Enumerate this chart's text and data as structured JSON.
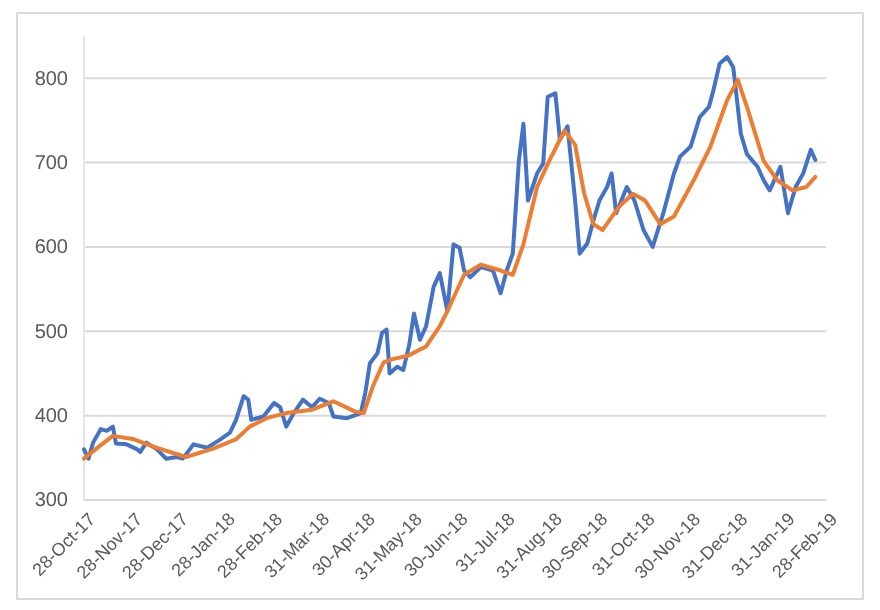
{
  "chart_data": {
    "type": "line",
    "xlim": [
      "2017-10-28",
      "2019-02-28"
    ],
    "xticks": [
      {
        "value": "2017-10-28",
        "label": "28-Oct-17"
      },
      {
        "value": "2017-11-28",
        "label": "28-Nov-17"
      },
      {
        "value": "2017-12-28",
        "label": "28-Dec-17"
      },
      {
        "value": "2018-01-28",
        "label": "28-Jan-18"
      },
      {
        "value": "2018-02-28",
        "label": "28-Feb-18"
      },
      {
        "value": "2018-03-31",
        "label": "31-Mar-18"
      },
      {
        "value": "2018-04-30",
        "label": "30-Apr-18"
      },
      {
        "value": "2018-05-31",
        "label": "31-May-18"
      },
      {
        "value": "2018-06-30",
        "label": "30-Jun-18"
      },
      {
        "value": "2018-07-31",
        "label": "31-Jul-18"
      },
      {
        "value": "2018-08-31",
        "label": "31-Aug-18"
      },
      {
        "value": "2018-09-30",
        "label": "30-Sep-18"
      },
      {
        "value": "2018-10-31",
        "label": "31-Oct-18"
      },
      {
        "value": "2018-11-30",
        "label": "30-Nov-18"
      },
      {
        "value": "2018-12-31",
        "label": "31-Dec-18"
      },
      {
        "value": "2019-01-31",
        "label": "31-Jan-19"
      },
      {
        "value": "2019-02-28",
        "label": "28-Feb-19"
      }
    ],
    "ylim": [
      300,
      850
    ],
    "yticks": [
      300,
      400,
      500,
      600,
      700,
      800
    ],
    "grid": "y",
    "series": [
      {
        "color": "#4472c4",
        "x": [
          "2017-10-28",
          "2017-10-31",
          "2017-11-03",
          "2017-11-08",
          "2017-11-12",
          "2017-11-16",
          "2017-11-18",
          "2017-11-25",
          "2017-12-02",
          "2017-12-04",
          "2017-12-08",
          "2017-12-15",
          "2017-12-21",
          "2017-12-28",
          "2018-01-01",
          "2018-01-08",
          "2018-01-17",
          "2018-01-25",
          "2018-02-01",
          "2018-02-05",
          "2018-02-10",
          "2018-02-13",
          "2018-02-15",
          "2018-02-23",
          "2018-03-02",
          "2018-03-06",
          "2018-03-10",
          "2018-03-15",
          "2018-03-21",
          "2018-03-27",
          "2018-04-01",
          "2018-04-07",
          "2018-04-10",
          "2018-04-19",
          "2018-04-28",
          "2018-05-01",
          "2018-05-04",
          "2018-05-09",
          "2018-05-12",
          "2018-05-15",
          "2018-05-17",
          "2018-05-22",
          "2018-05-26",
          "2018-05-30",
          "2018-06-02",
          "2018-06-06",
          "2018-06-10",
          "2018-06-15",
          "2018-06-19",
          "2018-06-24",
          "2018-06-28",
          "2018-07-02",
          "2018-07-05",
          "2018-07-09",
          "2018-07-16",
          "2018-07-24",
          "2018-07-29",
          "2018-08-02",
          "2018-08-06",
          "2018-08-10",
          "2018-08-13",
          "2018-08-16",
          "2018-08-22",
          "2018-08-26",
          "2018-08-29",
          "2018-09-03",
          "2018-09-06",
          "2018-09-11",
          "2018-09-16",
          "2018-09-19",
          "2018-09-24",
          "2018-09-28",
          "2018-10-02",
          "2018-10-07",
          "2018-10-10",
          "2018-10-13",
          "2018-10-20",
          "2018-10-25",
          "2018-10-31",
          "2018-11-06",
          "2018-11-13",
          "2018-11-20",
          "2018-11-24",
          "2018-12-01",
          "2018-12-07",
          "2018-12-13",
          "2018-12-16",
          "2018-12-20",
          "2018-12-25",
          "2018-12-29",
          "2019-01-03",
          "2019-01-07",
          "2019-01-14",
          "2019-01-18",
          "2019-01-22",
          "2019-01-29",
          "2019-02-03",
          "2019-02-08",
          "2019-02-13",
          "2019-02-18",
          "2019-02-21"
        ],
        "values": [
          360,
          349,
          368,
          384,
          382,
          387,
          367,
          366,
          360,
          357,
          368,
          360,
          349,
          351,
          349,
          366,
          362,
          371,
          380,
          395,
          423,
          419,
          395,
          399,
          415,
          410,
          387,
          403,
          419,
          410,
          420,
          415,
          399,
          397,
          403,
          427,
          462,
          474,
          498,
          502,
          450,
          458,
          454,
          485,
          521,
          490,
          506,
          553,
          569,
          524,
          603,
          599,
          572,
          564,
          576,
          572,
          545,
          572,
          592,
          702,
          746,
          655,
          687,
          699,
          778,
          782,
          727,
          743,
          655,
          592,
          604,
          631,
          655,
          671,
          687,
          640,
          671,
          655,
          620,
          600,
          640,
          687,
          707,
          719,
          754,
          766,
          786,
          817,
          825,
          813,
          734,
          710,
          695,
          679,
          667,
          695,
          640,
          671,
          687,
          715,
          703
        ]
      },
      {
        "color": "#ed7d31",
        "x": [
          "2017-10-28",
          "2017-11-08",
          "2017-11-16",
          "2017-11-30",
          "2017-12-13",
          "2018-01-03",
          "2018-01-21",
          "2018-02-05",
          "2018-02-14",
          "2018-02-25",
          "2018-03-10",
          "2018-03-27",
          "2018-04-10",
          "2018-04-24",
          "2018-04-30",
          "2018-05-06",
          "2018-05-13",
          "2018-05-19",
          "2018-05-29",
          "2018-06-10",
          "2018-06-19",
          "2018-06-24",
          "2018-07-05",
          "2018-07-16",
          "2018-07-29",
          "2018-08-06",
          "2018-08-13",
          "2018-08-22",
          "2018-08-30",
          "2018-09-09",
          "2018-09-16",
          "2018-09-22",
          "2018-09-28",
          "2018-10-04",
          "2018-10-15",
          "2018-10-24",
          "2018-11-01",
          "2018-11-11",
          "2018-11-20",
          "2018-12-03",
          "2018-12-14",
          "2018-12-25",
          "2019-01-01",
          "2019-01-07",
          "2019-01-18",
          "2019-01-27",
          "2019-02-06",
          "2019-02-15",
          "2019-02-21"
        ],
        "values": [
          349,
          365,
          376,
          372,
          363,
          351,
          361,
          372,
          387,
          397,
          403,
          407,
          417,
          405,
          403,
          435,
          463,
          467,
          471,
          482,
          506,
          524,
          567,
          579,
          572,
          567,
          603,
          671,
          702,
          738,
          721,
          663,
          627,
          620,
          648,
          663,
          655,
          627,
          636,
          679,
          719,
          774,
          798,
          766,
          702,
          679,
          667,
          671,
          683
        ]
      }
    ]
  }
}
